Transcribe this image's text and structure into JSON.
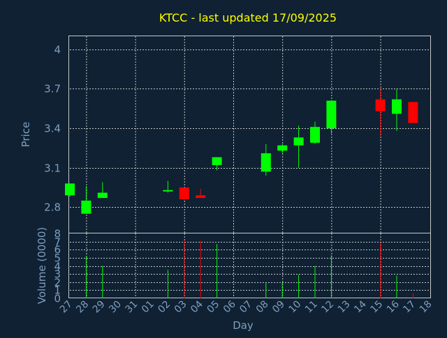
{
  "chart_data": {
    "type": "candlestick",
    "title": "KTCC - last updated 17/09/2025",
    "xlabel": "Day",
    "colors": {
      "background": "#0f2133",
      "title": "#ffff00",
      "axis_text": "#7f9fbf",
      "grid": "#c8c8c8",
      "up": "#00ff00",
      "down": "#ff0000"
    },
    "x_ticks": [
      "27",
      "28",
      "29",
      "30",
      "31",
      "01",
      "02",
      "03",
      "04",
      "05",
      "06",
      "07",
      "08",
      "09",
      "10",
      "11",
      "12",
      "13",
      "14",
      "15",
      "16",
      "17",
      "18"
    ],
    "price_panel": {
      "ylabel": "Price",
      "ylim": [
        2.6,
        4.1
      ],
      "y_ticks": [
        "2.8",
        "3.1",
        "3.4",
        "3.7",
        "4"
      ],
      "y_tick_values": [
        2.8,
        3.1,
        3.4,
        3.7,
        4.0
      ],
      "grid": true
    },
    "volume_panel": {
      "ylabel": "Volume (0000)",
      "ylim": [
        0,
        8
      ],
      "y_ticks": [
        "0",
        "1",
        "2",
        "3",
        "4",
        "5",
        "6",
        "7",
        "8"
      ],
      "grid": true
    },
    "candles": [
      {
        "x": 0,
        "open": 2.89,
        "high": 2.98,
        "low": 2.88,
        "close": 2.98,
        "volume": 0
      },
      {
        "x": 1,
        "open": 2.75,
        "high": 2.96,
        "low": 2.75,
        "close": 2.85,
        "volume": 5.2
      },
      {
        "x": 2,
        "open": 2.87,
        "high": 2.99,
        "low": 2.87,
        "close": 2.91,
        "volume": 4.0
      },
      {
        "x": 6,
        "open": 2.92,
        "high": 3.0,
        "low": 2.91,
        "close": 2.93,
        "volume": 3.5
      },
      {
        "x": 7,
        "open": 2.95,
        "high": 2.95,
        "low": 2.85,
        "close": 2.86,
        "volume": 7.2
      },
      {
        "x": 8,
        "open": 2.89,
        "high": 2.94,
        "low": 2.87,
        "close": 2.87,
        "volume": 7.1
      },
      {
        "x": 9,
        "open": 3.12,
        "high": 3.18,
        "low": 3.08,
        "close": 3.18,
        "volume": 6.7
      },
      {
        "x": 12,
        "open": 3.07,
        "high": 3.28,
        "low": 3.04,
        "close": 3.21,
        "volume": 1.9
      },
      {
        "x": 13,
        "open": 3.23,
        "high": 3.28,
        "low": 3.21,
        "close": 3.27,
        "volume": 1.9
      },
      {
        "x": 14,
        "open": 3.27,
        "high": 3.42,
        "low": 3.1,
        "close": 3.33,
        "volume": 2.9
      },
      {
        "x": 15,
        "open": 3.29,
        "high": 3.45,
        "low": 3.28,
        "close": 3.41,
        "volume": 4.0
      },
      {
        "x": 16,
        "open": 3.4,
        "high": 3.61,
        "low": 3.36,
        "close": 3.61,
        "volume": 5.3
      },
      {
        "x": 19,
        "open": 3.62,
        "high": 3.7,
        "low": 3.34,
        "close": 3.53,
        "volume": 6.9
      },
      {
        "x": 20,
        "open": 3.51,
        "high": 3.7,
        "low": 3.38,
        "close": 3.62,
        "volume": 2.8
      },
      {
        "x": 21,
        "open": 3.6,
        "high": 3.6,
        "low": 3.44,
        "close": 3.44,
        "volume": 0.6
      }
    ]
  }
}
